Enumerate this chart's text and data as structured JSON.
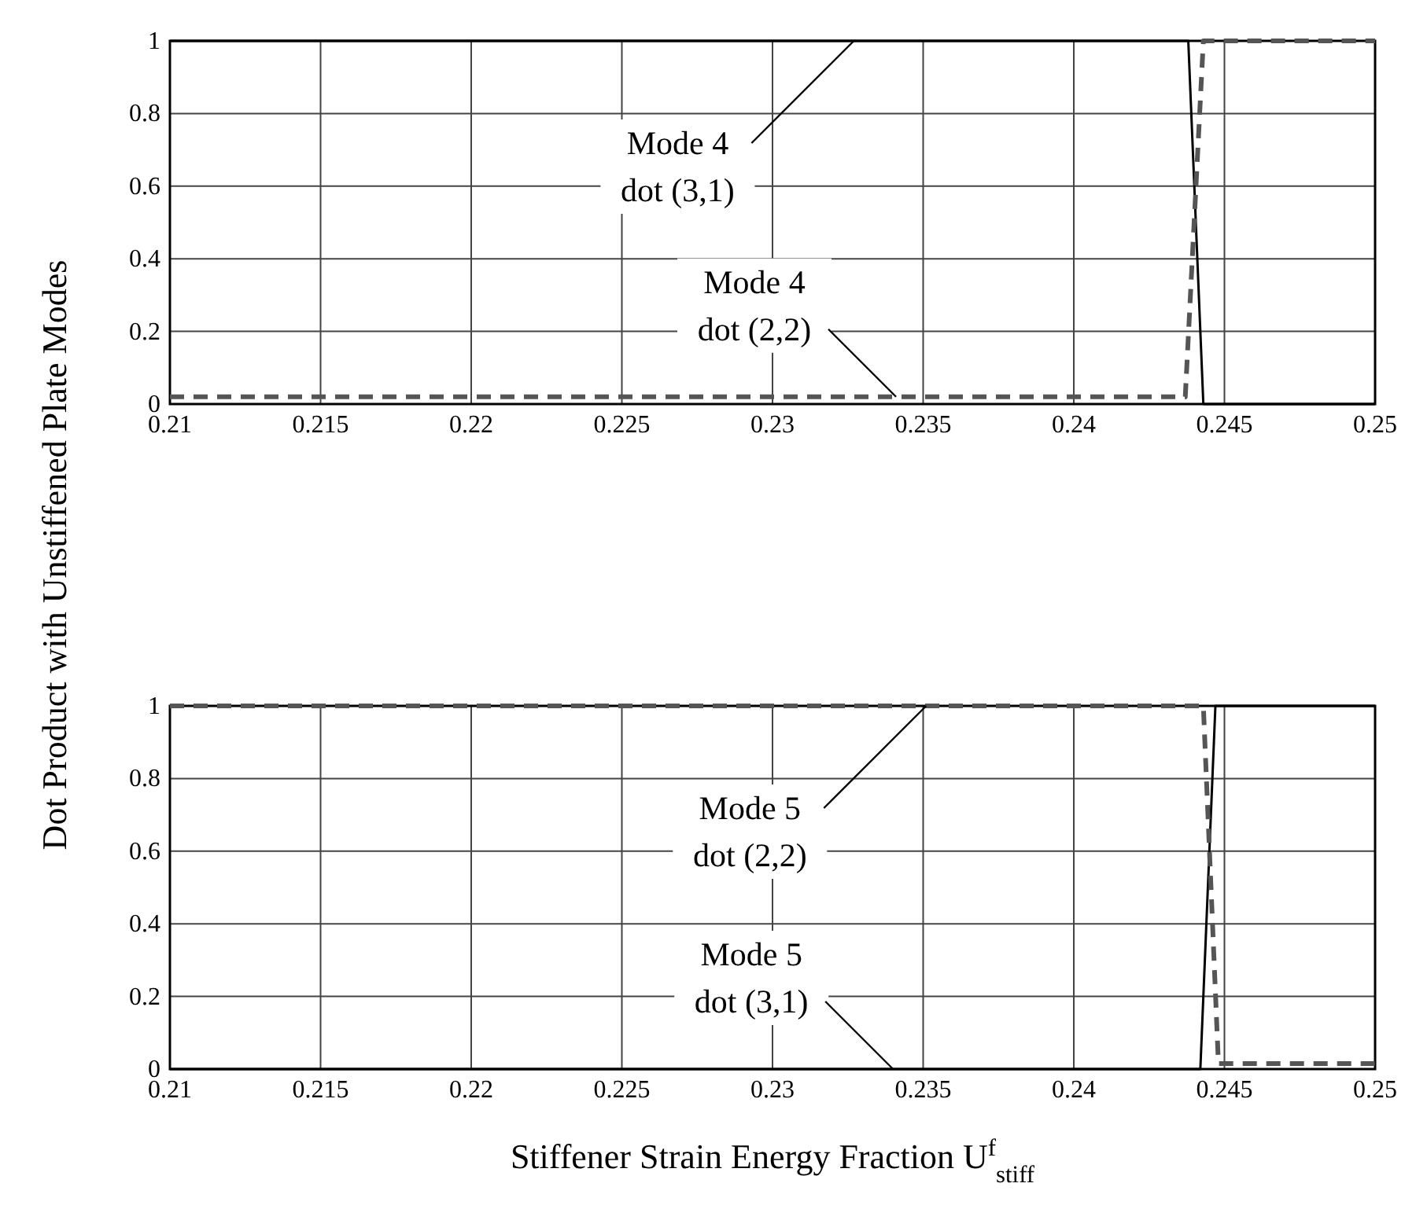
{
  "chart_data": [
    {
      "type": "line",
      "ylabel": "Dot Product with Unstiffened Plate Modes",
      "xlim": [
        0.21,
        0.25
      ],
      "xticks": [
        0.21,
        0.215,
        0.22,
        0.225,
        0.23,
        0.235,
        0.24,
        0.245,
        0.25
      ],
      "ylim": [
        0,
        1
      ],
      "yticks": [
        0,
        0.2,
        0.4,
        0.6,
        0.8,
        1
      ],
      "grid": true,
      "series": [
        {
          "color": "#000000",
          "line_style": "solid",
          "x": [
            0.21,
            0.2438,
            0.2443,
            0.25
          ],
          "values": [
            1,
            1,
            0,
            0
          ]
        },
        {
          "color": "#555555",
          "line_style": "dashed",
          "x": [
            0.21,
            0.2437,
            0.2443,
            0.25
          ],
          "values": [
            0.02,
            0.02,
            1,
            1
          ]
        }
      ],
      "annotations": [
        {
          "text": "Mode 4\ndot (3,1)",
          "x": 0.2327,
          "y": 1
        },
        {
          "text": "Mode 4\ndot (2,2)",
          "x": 0.2341,
          "y": 0.02
        }
      ]
    },
    {
      "type": "line",
      "xlabel": "Stiffener Strain Energy Fraction U$^{f}$$_{stiff}$",
      "xlim": [
        0.21,
        0.25
      ],
      "xticks": [
        0.21,
        0.215,
        0.22,
        0.225,
        0.23,
        0.235,
        0.24,
        0.245,
        0.25
      ],
      "ylim": [
        0,
        1
      ],
      "yticks": [
        0,
        0.2,
        0.4,
        0.6,
        0.8,
        1
      ],
      "grid": true,
      "series": [
        {
          "color": "#000000",
          "line_style": "solid",
          "x": [
            0.21,
            0.2442,
            0.2447,
            0.25
          ],
          "values": [
            0,
            0,
            1,
            1
          ]
        },
        {
          "color": "#555555",
          "line_style": "dashed",
          "x": [
            0.21,
            0.2443,
            0.2448,
            0.25
          ],
          "values": [
            1,
            1,
            0.015,
            0.015
          ]
        }
      ],
      "annotations": [
        {
          "text": "Mode 5\ndot (2,2)",
          "x": 0.2351,
          "y": 1
        },
        {
          "text": "Mode 5\ndot (3,1)",
          "x": 0.234,
          "y": 0
        }
      ]
    }
  ]
}
